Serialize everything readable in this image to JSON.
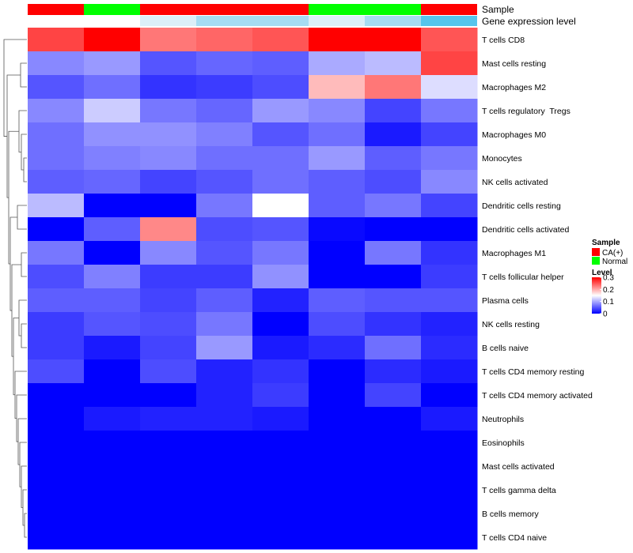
{
  "chart_data": {
    "type": "heatmap",
    "annotation_tracks": [
      {
        "name": "Sample",
        "values": [
          "CA(+)",
          "Normal",
          "CA(+)",
          "CA(+)",
          "CA(+)",
          "Normal",
          "Normal",
          "CA(+)"
        ]
      },
      {
        "name": "Gene expression level",
        "values": [
          "none",
          "none",
          "low",
          "medium",
          "medium",
          "low",
          "medium",
          "high"
        ]
      }
    ],
    "rows": [
      "T cells CD8",
      "Mast cells resting",
      "Macrophages M2",
      "T cells regulatory  Tregs",
      "Macrophages M0",
      "Monocytes",
      "NK cells activated",
      "Dendritic cells resting",
      "Dendritic cells activated",
      "Macrophages M1",
      "T cells follicular helper",
      "Plasma cells",
      "NK cells resting",
      "B cells naive",
      "T cells CD4 memory resting",
      "T cells CD4 memory activated",
      "Neutrophils",
      "Eosinophils",
      "Mast cells activated",
      "T cells gamma delta",
      "B cells memory",
      "T cells CD4 naive"
    ],
    "values": [
      [
        0.26,
        0.3,
        0.23,
        0.24,
        0.25,
        0.3,
        0.3,
        0.25
      ],
      [
        0.08,
        0.09,
        0.05,
        0.06,
        0.055,
        0.1,
        0.11,
        0.26
      ],
      [
        0.05,
        0.065,
        0.03,
        0.035,
        0.045,
        0.19,
        0.23,
        0.13
      ],
      [
        0.08,
        0.12,
        0.07,
        0.06,
        0.09,
        0.08,
        0.04,
        0.07
      ],
      [
        0.065,
        0.085,
        0.085,
        0.075,
        0.05,
        0.065,
        0.015,
        0.04
      ],
      [
        0.065,
        0.075,
        0.08,
        0.065,
        0.065,
        0.09,
        0.055,
        0.07
      ],
      [
        0.055,
        0.06,
        0.04,
        0.05,
        0.065,
        0.055,
        0.045,
        0.08
      ],
      [
        0.11,
        0.0,
        0.0,
        0.07,
        0.15,
        0.055,
        0.07,
        0.04
      ],
      [
        0.0,
        0.055,
        0.22,
        0.045,
        0.05,
        0.005,
        0.0,
        0.0
      ],
      [
        0.07,
        0.0,
        0.08,
        0.05,
        0.07,
        0.0,
        0.07,
        0.03
      ],
      [
        0.045,
        0.075,
        0.035,
        0.035,
        0.085,
        0.0,
        0.0,
        0.035
      ],
      [
        0.055,
        0.055,
        0.04,
        0.055,
        0.02,
        0.055,
        0.05,
        0.05
      ],
      [
        0.035,
        0.05,
        0.045,
        0.07,
        0.0,
        0.045,
        0.03,
        0.02
      ],
      [
        0.035,
        0.015,
        0.04,
        0.09,
        0.015,
        0.025,
        0.065,
        0.025
      ],
      [
        0.045,
        0.0,
        0.045,
        0.02,
        0.03,
        0.0,
        0.025,
        0.015
      ],
      [
        0.0,
        0.0,
        0.0,
        0.02,
        0.035,
        0.0,
        0.04,
        0.0
      ],
      [
        0.0,
        0.015,
        0.02,
        0.02,
        0.015,
        0.0,
        0.0,
        0.015
      ],
      [
        0.0,
        0.0,
        0.0,
        0.0,
        0.0,
        0.0,
        0.0,
        0.0
      ],
      [
        0.0,
        0.0,
        0.0,
        0.0,
        0.0,
        0.0,
        0.0,
        0.0
      ],
      [
        0.0,
        0.0,
        0.0,
        0.0,
        0.0,
        0.0,
        0.0,
        0.0
      ],
      [
        0.0,
        0.0,
        0.0,
        0.0,
        0.0,
        0.0,
        0.0,
        0.0
      ],
      [
        0.0,
        0.0,
        0.0,
        0.0,
        0.0,
        0.0,
        0.0,
        0.0
      ]
    ],
    "color_scale": {
      "min": 0,
      "mid": 0.15,
      "max": 0.3,
      "low_color": "#0000FF",
      "mid_color": "#FFFFFF",
      "high_color": "#FF0000"
    },
    "legend": {
      "sample_title": "Sample",
      "sample_entries": [
        {
          "label": "CA(+)",
          "color": "#FF0000"
        },
        {
          "label": "Normal",
          "color": "#00FF00"
        }
      ],
      "level_title": "Level",
      "level_ticks": [
        "0.3",
        "0.2",
        "0.1",
        "0"
      ],
      "level_tick_values": [
        0.3,
        0.2,
        0.1,
        0
      ]
    },
    "expression_level_colors": {
      "none": "#FFFFFF",
      "low": "#DCEFF8",
      "medium": "#A6DCF2",
      "high": "#56C5EC"
    },
    "row_dendrogram": "hierarchical clustering tree (left)"
  }
}
